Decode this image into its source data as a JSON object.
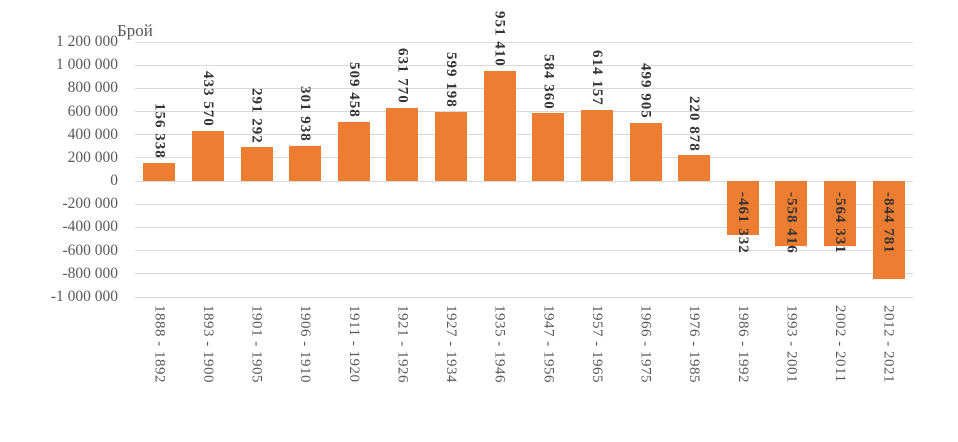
{
  "chart_data": {
    "type": "bar",
    "title": "Брой",
    "categories": [
      "1888 - 1892",
      "1893 - 1900",
      "1901 - 1905",
      "1906 - 1910",
      "1911 - 1920",
      "1921 - 1926",
      "1927 - 1934",
      "1935 - 1946",
      "1947 - 1956",
      "1957 - 1965",
      "1966 - 1975",
      "1976 - 1985",
      "1986 - 1992",
      "1993 - 2001",
      "2002 - 2011",
      "2012 - 2021"
    ],
    "values": [
      156338,
      433570,
      291292,
      301938,
      509458,
      631770,
      599198,
      951410,
      584360,
      614157,
      499905,
      220878,
      -461332,
      -558416,
      -564331,
      -844781
    ],
    "value_labels": [
      "156 338",
      "433 570",
      "291 292",
      "301 938",
      "509 458",
      "631 770",
      "599 198",
      "951 410",
      "584 360",
      "614 157",
      "499 905",
      "220 878",
      "-461 332",
      "-558 416",
      "-564 331",
      "-844 781"
    ],
    "y_tick_labels": [
      "1 200 000",
      "1 000 000",
      "800 000",
      "600 000",
      "400 000",
      "200 000",
      "0",
      "-200 000",
      "-400 000",
      "-600 000",
      "-800 000",
      "-1 000 000"
    ],
    "ylim": [
      -1000000,
      1200000
    ],
    "grid_step": 200000,
    "grid": "horizontal",
    "legend_position": "none",
    "xlabel": "",
    "ylabel": "Брой",
    "colors": {
      "bar": "#ED7D31",
      "gridline": "#D9D9D9",
      "axis_text": "#595959",
      "data_label_text": "#333333"
    }
  }
}
